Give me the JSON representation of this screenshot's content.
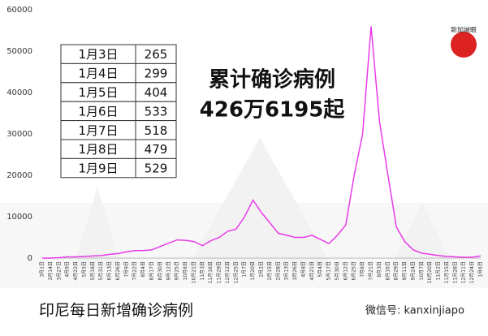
{
  "chart_data": {
    "type": "line",
    "title": "累计确诊病例",
    "subtitle": "426万6195起",
    "caption": "印尼每日新增确诊病例",
    "watermark": "微信号: kanxinjiapo",
    "logo": "新加坡眼",
    "color": "#e83be8",
    "ylim": [
      0,
      60000
    ],
    "yticks": [
      0,
      10000,
      20000,
      30000,
      40000,
      50000,
      60000
    ],
    "categories": [
      "3月1日",
      "3月14日",
      "3月27日",
      "4月9日",
      "4月22日",
      "5月5日",
      "5月18日",
      "5月31日",
      "6月13日",
      "6月26日",
      "7月9日",
      "7月22日",
      "8月4日",
      "8月17日",
      "8月30日",
      "9月12日",
      "9月25日",
      "10月8日",
      "10月21日",
      "11月3日",
      "11月16日",
      "11月29日",
      "12月12日",
      "12月25日",
      "1月7日",
      "1月20日",
      "2月2日",
      "2月15日",
      "2月28日",
      "3月13日",
      "3月26日",
      "4月8日",
      "4月21日",
      "5月4日",
      "5月17日",
      "5月30日",
      "6月12日",
      "6月25日",
      "7月8日",
      "7月21日",
      "8月3日",
      "8月16日",
      "8月29日",
      "9月11日",
      "9月24日",
      "10月7日",
      "10月20日",
      "11月2日",
      "11月15日",
      "11月28日",
      "12月11日",
      "12月24日",
      "1月6日"
    ],
    "values": [
      0,
      0,
      100,
      300,
      300,
      400,
      500,
      600,
      900,
      1100,
      1500,
      1800,
      1800,
      2000,
      2800,
      3600,
      4400,
      4300,
      4000,
      3000,
      4200,
      5000,
      6500,
      7000,
      10000,
      14000,
      11000,
      8500,
      6000,
      5500,
      5000,
      5000,
      5500,
      4500,
      3500,
      5500,
      8000,
      20000,
      30000,
      56000,
      33000,
      20000,
      7500,
      4000,
      2000,
      1200,
      900,
      600,
      400,
      300,
      200,
      200,
      500
    ],
    "table": [
      [
        "1月3日",
        "265"
      ],
      [
        "1月4日",
        "299"
      ],
      [
        "1月5日",
        "404"
      ],
      [
        "1月6日",
        "533"
      ],
      [
        "1月7日",
        "518"
      ],
      [
        "1月8日",
        "479"
      ],
      [
        "1月9日",
        "529"
      ]
    ]
  }
}
